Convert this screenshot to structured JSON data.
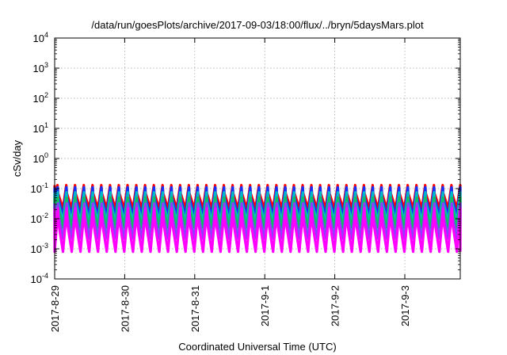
{
  "chart_data": {
    "type": "line",
    "title": "/data/run/goesPlots/archive/2017-09-03/18:00/flux/../bryn/5daysMars.plot",
    "xlabel": "Coordinated Universal Time (UTC)",
    "ylabel": "cSv/day",
    "yscale": "log",
    "ylim": [
      0.0001,
      10000
    ],
    "y_ticks": [
      {
        "base": "10",
        "exp": "-4"
      },
      {
        "base": "10",
        "exp": "-3"
      },
      {
        "base": "10",
        "exp": "-2"
      },
      {
        "base": "10",
        "exp": "-1"
      },
      {
        "base": "10",
        "exp": "0"
      },
      {
        "base": "10",
        "exp": "1"
      },
      {
        "base": "10",
        "exp": "2"
      },
      {
        "base": "10",
        "exp": "3"
      },
      {
        "base": "10",
        "exp": "4"
      }
    ],
    "xlim": [
      "2017-08-29 00:00",
      "2017-09-03 19:00"
    ],
    "x_ticks": [
      "2017-8-29",
      "2017-8-30",
      "2017-8-31",
      "2017-9-1",
      "2017-9-2",
      "2017-9-3"
    ],
    "grid": true,
    "legend": "none",
    "pattern": {
      "cycles_per_day": 8,
      "peak_at_cycle_fraction": 0.33,
      "min_at_cycle_fraction": 0.95
    },
    "series": [
      {
        "color": "#ff0000",
        "peak": 0.13,
        "min": 0.022
      },
      {
        "color": "#1030ff",
        "peak": 0.11,
        "min": 0.012
      },
      {
        "color": "#00b8c8",
        "peak": 0.075,
        "min": 0.008
      },
      {
        "color": "#10c060",
        "peak": 0.05,
        "min": 0.005
      },
      {
        "color": "#8a40ff",
        "peak": 0.032,
        "min": 0.0022
      },
      {
        "color": "#ff00ff",
        "peak": 0.022,
        "min": 0.0008
      }
    ]
  }
}
